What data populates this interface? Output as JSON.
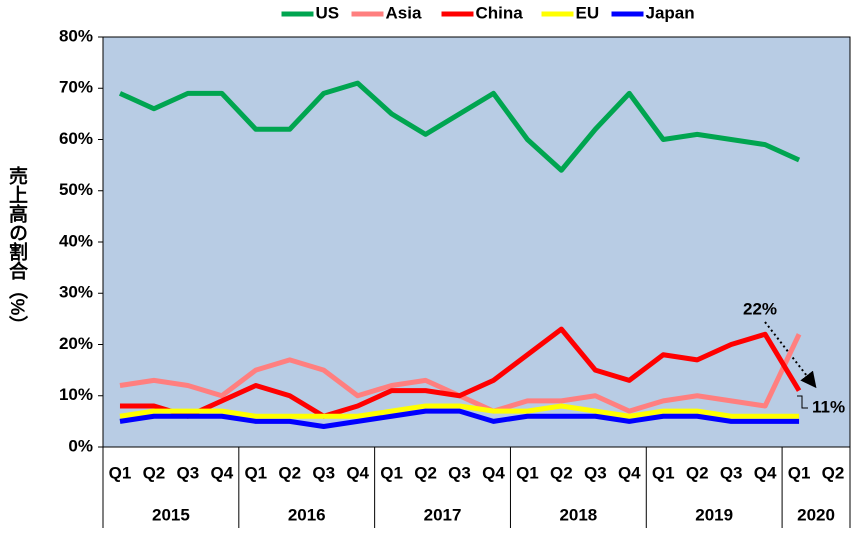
{
  "chart_data": {
    "type": "line",
    "y_label": "売上高の割合（%）",
    "categories": [
      {
        "quarter": "Q1",
        "year": "2015"
      },
      {
        "quarter": "Q2",
        "year": "2015"
      },
      {
        "quarter": "Q3",
        "year": "2015"
      },
      {
        "quarter": "Q4",
        "year": "2015"
      },
      {
        "quarter": "Q1",
        "year": "2016"
      },
      {
        "quarter": "Q2",
        "year": "2016"
      },
      {
        "quarter": "Q3",
        "year": "2016"
      },
      {
        "quarter": "Q4",
        "year": "2016"
      },
      {
        "quarter": "Q1",
        "year": "2017"
      },
      {
        "quarter": "Q2",
        "year": "2017"
      },
      {
        "quarter": "Q3",
        "year": "2017"
      },
      {
        "quarter": "Q4",
        "year": "2017"
      },
      {
        "quarter": "Q1",
        "year": "2018"
      },
      {
        "quarter": "Q2",
        "year": "2018"
      },
      {
        "quarter": "Q3",
        "year": "2018"
      },
      {
        "quarter": "Q4",
        "year": "2018"
      },
      {
        "quarter": "Q1",
        "year": "2019"
      },
      {
        "quarter": "Q2",
        "year": "2019"
      },
      {
        "quarter": "Q3",
        "year": "2019"
      },
      {
        "quarter": "Q4",
        "year": "2019"
      },
      {
        "quarter": "Q1",
        "year": "2020"
      },
      {
        "quarter": "Q2",
        "year": "2020"
      }
    ],
    "series": [
      {
        "name": "US",
        "color": "#00a550",
        "values": [
          69,
          66,
          69,
          69,
          62,
          62,
          69,
          71,
          65,
          61,
          65,
          69,
          60,
          54,
          62,
          69,
          60,
          61,
          60,
          59,
          56,
          null
        ]
      },
      {
        "name": "Asia",
        "color": "#ff7f7f",
        "values": [
          12,
          13,
          12,
          10,
          15,
          17,
          15,
          10,
          12,
          13,
          10,
          7,
          9,
          9,
          10,
          7,
          9,
          10,
          9,
          8,
          22,
          null
        ]
      },
      {
        "name": "China",
        "color": "#ff0000",
        "values": [
          8,
          8,
          6,
          9,
          12,
          10,
          6,
          8,
          11,
          11,
          10,
          13,
          18,
          23,
          15,
          13,
          18,
          17,
          20,
          22,
          11,
          null
        ]
      },
      {
        "name": "EU",
        "color": "#ffff00",
        "values": [
          6,
          7,
          7,
          7,
          6,
          6,
          6,
          6,
          7,
          8,
          8,
          7,
          7,
          8,
          7,
          6,
          7,
          7,
          6,
          6,
          6,
          null
        ]
      },
      {
        "name": "Japan",
        "color": "#0000ff",
        "values": [
          5,
          6,
          6,
          6,
          5,
          5,
          4,
          5,
          6,
          7,
          7,
          5,
          6,
          6,
          6,
          5,
          6,
          6,
          5,
          5,
          5,
          null
        ]
      }
    ],
    "annotations": [
      {
        "text": "22%"
      },
      {
        "text": "11%"
      }
    ],
    "ylim": [
      0,
      80
    ],
    "yticks": [
      {
        "value": 0,
        "label": "0%"
      },
      {
        "value": 10,
        "label": "10%"
      },
      {
        "value": 20,
        "label": "20%"
      },
      {
        "value": 30,
        "label": "30%"
      },
      {
        "value": 40,
        "label": "40%"
      },
      {
        "value": 50,
        "label": "50%"
      },
      {
        "value": 60,
        "label": "60%"
      },
      {
        "value": 70,
        "label": "70%"
      },
      {
        "value": 80,
        "label": "80%"
      }
    ],
    "grid": false,
    "plot_background": "#b8cce4",
    "legend": "top"
  }
}
